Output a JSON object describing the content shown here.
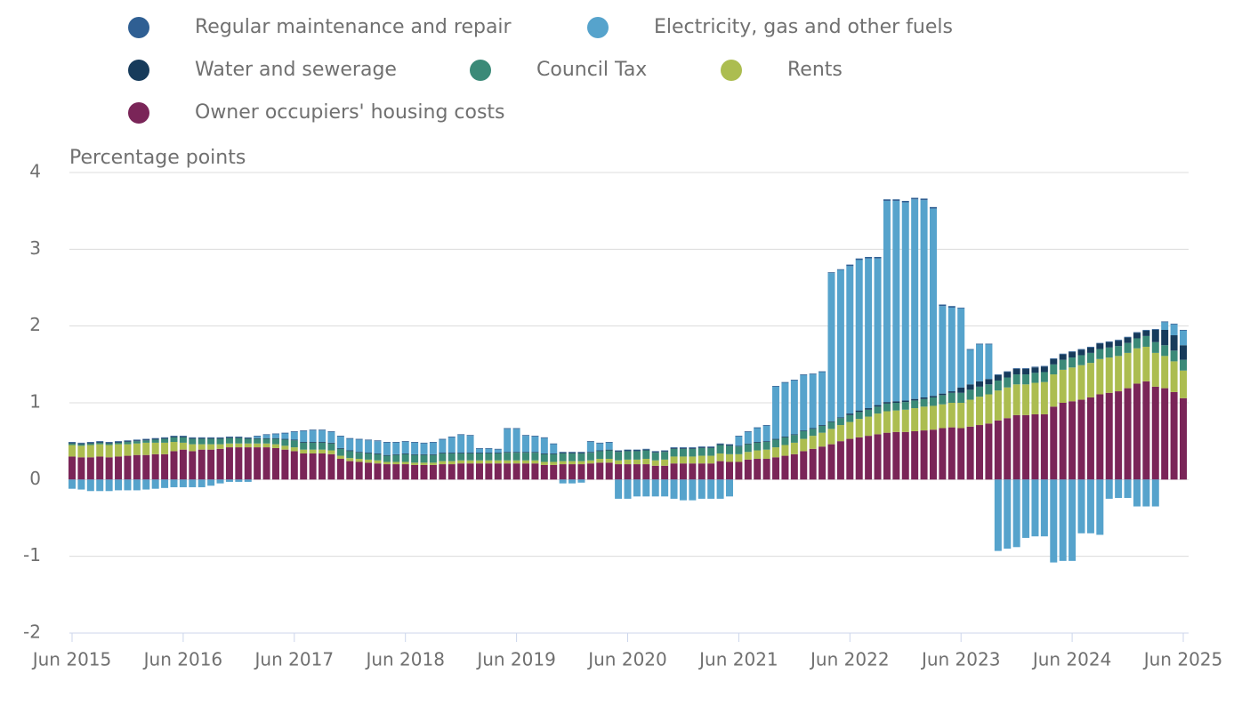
{
  "chart_data": {
    "type": "stacked_bar",
    "y_label": "Percentage points",
    "categories": [
      "Jun 2015",
      null,
      null,
      null,
      null,
      null,
      null,
      null,
      null,
      null,
      null,
      null,
      "Jun 2016",
      null,
      null,
      null,
      null,
      null,
      null,
      null,
      null,
      null,
      null,
      null,
      "Jun 2017",
      null,
      null,
      null,
      null,
      null,
      null,
      null,
      null,
      null,
      null,
      null,
      "Jun 2018",
      null,
      null,
      null,
      null,
      null,
      null,
      null,
      null,
      null,
      null,
      null,
      "Jun 2019",
      null,
      null,
      null,
      null,
      null,
      null,
      null,
      null,
      null,
      null,
      null,
      "Jun 2020",
      null,
      null,
      null,
      null,
      null,
      null,
      null,
      null,
      null,
      null,
      null,
      "Jun 2021",
      null,
      null,
      null,
      null,
      null,
      null,
      null,
      null,
      null,
      null,
      null,
      "Jun 2022",
      null,
      null,
      null,
      null,
      null,
      null,
      null,
      null,
      null,
      null,
      null,
      "Jun 2023",
      null,
      null,
      null,
      null,
      null,
      null,
      null,
      null,
      null,
      null,
      null,
      "Jun 2024",
      null,
      null,
      null,
      null,
      null,
      null,
      null,
      null,
      null,
      null,
      null,
      "Jun 2025"
    ],
    "series": [
      {
        "name": "Regular maintenance and repair",
        "color": "#2f5f93",
        "values": [
          0.01,
          0.01,
          0.01,
          0.01,
          0.01,
          0.01,
          0.01,
          0.01,
          0.01,
          0.01,
          0.01,
          0.01,
          0.01,
          0.01,
          0.01,
          0.01,
          0.01,
          0.01,
          0.01,
          0.01,
          0.01,
          0.01,
          0.01,
          0.01,
          0.01,
          0.01,
          0.01,
          0.01,
          0.01,
          0.01,
          0.01,
          0.01,
          0.01,
          0.01,
          0.01,
          0.01,
          0.01,
          0.01,
          0.01,
          0.01,
          0.01,
          0.01,
          0.01,
          0.01,
          0.01,
          0.01,
          0.01,
          0.01,
          0.01,
          0.01,
          0.01,
          0.01,
          0.01,
          0.01,
          0.01,
          0.01,
          0.01,
          0.01,
          0.01,
          0.01,
          0.01,
          0.01,
          0.01,
          0.01,
          0.01,
          0.01,
          0.01,
          0.01,
          0.01,
          0.01,
          0.01,
          0.01,
          0.01,
          0.01,
          0.01,
          0.01,
          0.01,
          0.01,
          0.01,
          0.01,
          0.01,
          0.01,
          0.01,
          0.01,
          0.02,
          0.02,
          0.02,
          0.02,
          0.02,
          0.02,
          0.02,
          0.02,
          0.02,
          0.02,
          0.02,
          0.02,
          0.01,
          0.01,
          0.01,
          0.01,
          0.01,
          0.01,
          0.01,
          0.01,
          0.01,
          0.01,
          0.01,
          0.01,
          0.01,
          0.01,
          0.01,
          0.01,
          0.01,
          0.01,
          0.01,
          0.01,
          0.01,
          0.01,
          0.01,
          0.01,
          0.01
        ]
      },
      {
        "name": "Electricity, gas and other fuels",
        "color": "#56a3cc",
        "values": [
          -0.12,
          -0.13,
          -0.15,
          -0.15,
          -0.15,
          -0.14,
          -0.14,
          -0.14,
          -0.13,
          -0.12,
          -0.11,
          -0.1,
          -0.1,
          -0.1,
          -0.1,
          -0.08,
          -0.05,
          -0.03,
          -0.03,
          -0.03,
          0.02,
          0.04,
          0.05,
          0.07,
          0.1,
          0.14,
          0.15,
          0.15,
          0.14,
          0.15,
          0.15,
          0.16,
          0.16,
          0.16,
          0.16,
          0.15,
          0.15,
          0.15,
          0.14,
          0.15,
          0.17,
          0.2,
          0.23,
          0.22,
          0.05,
          0.05,
          0.04,
          0.3,
          0.3,
          0.21,
          0.2,
          0.2,
          0.12,
          -0.05,
          -0.05,
          -0.04,
          0.13,
          0.09,
          0.09,
          -0.25,
          -0.25,
          -0.22,
          -0.22,
          -0.22,
          -0.22,
          -0.25,
          -0.27,
          -0.27,
          -0.25,
          -0.25,
          -0.25,
          -0.22,
          0.12,
          0.15,
          0.18,
          0.2,
          0.68,
          0.7,
          0.7,
          0.72,
          0.7,
          0.69,
          1.93,
          1.92,
          1.92,
          1.96,
          1.95,
          1.91,
          2.62,
          2.61,
          2.58,
          2.6,
          2.57,
          2.44,
          1.14,
          1.09,
          1.03,
          0.45,
          0.48,
          0.45,
          -0.93,
          -0.9,
          -0.88,
          -0.76,
          -0.74,
          -0.74,
          -1.08,
          -1.06,
          -1.06,
          -0.7,
          -0.7,
          -0.72,
          -0.25,
          -0.24,
          -0.24,
          -0.35,
          -0.35,
          -0.35,
          0.1,
          0.14,
          0.19
        ]
      },
      {
        "name": "Water and sewerage",
        "color": "#173b5b",
        "values": [
          0.01,
          0.01,
          0.01,
          0.01,
          0.01,
          0.01,
          0.01,
          0.01,
          0.01,
          0.01,
          0.01,
          0.01,
          0.01,
          0.01,
          0.01,
          0.01,
          0.01,
          0.01,
          0.01,
          0.01,
          0.01,
          0.01,
          0.01,
          0.01,
          0.01,
          0.01,
          0.01,
          0.01,
          0.01,
          0.01,
          0.01,
          0.01,
          0.01,
          0.01,
          0.01,
          0.01,
          0.01,
          0.01,
          0.01,
          0.01,
          0.01,
          0.01,
          0.01,
          0.01,
          0.01,
          0.01,
          0.01,
          0.01,
          0.01,
          0.01,
          0.01,
          0.01,
          0.01,
          0.01,
          0.01,
          0.01,
          0.01,
          0.01,
          0.01,
          0.01,
          0.01,
          0.01,
          0.01,
          0.01,
          0.01,
          0.01,
          0.01,
          0.01,
          0.01,
          0.01,
          0.01,
          0.01,
          0.01,
          0.01,
          0.01,
          0.01,
          0.01,
          0.01,
          0.01,
          0.01,
          0.01,
          0.01,
          0.01,
          0.01,
          0.02,
          0.02,
          0.02,
          0.02,
          0.02,
          0.02,
          0.02,
          0.02,
          0.02,
          0.02,
          0.02,
          0.02,
          0.07,
          0.07,
          0.07,
          0.07,
          0.07,
          0.07,
          0.07,
          0.07,
          0.07,
          0.07,
          0.07,
          0.07,
          0.07,
          0.07,
          0.07,
          0.07,
          0.07,
          0.07,
          0.07,
          0.07,
          0.07,
          0.16,
          0.2,
          0.2,
          0.19
        ]
      },
      {
        "name": "Council Tax",
        "color": "#3b8a78",
        "values": [
          0.02,
          0.02,
          0.02,
          0.02,
          0.02,
          0.02,
          0.03,
          0.03,
          0.03,
          0.04,
          0.05,
          0.06,
          0.07,
          0.07,
          0.07,
          0.07,
          0.07,
          0.07,
          0.07,
          0.06,
          0.06,
          0.06,
          0.07,
          0.08,
          0.09,
          0.09,
          0.09,
          0.09,
          0.09,
          0.09,
          0.09,
          0.08,
          0.08,
          0.08,
          0.08,
          0.09,
          0.1,
          0.1,
          0.1,
          0.1,
          0.1,
          0.1,
          0.09,
          0.09,
          0.09,
          0.09,
          0.09,
          0.1,
          0.1,
          0.1,
          0.1,
          0.1,
          0.1,
          0.1,
          0.1,
          0.1,
          0.1,
          0.1,
          0.11,
          0.11,
          0.11,
          0.11,
          0.11,
          0.1,
          0.1,
          0.1,
          0.1,
          0.1,
          0.1,
          0.1,
          0.11,
          0.11,
          0.1,
          0.1,
          0.1,
          0.1,
          0.1,
          0.1,
          0.1,
          0.1,
          0.09,
          0.09,
          0.09,
          0.09,
          0.09,
          0.09,
          0.09,
          0.09,
          0.1,
          0.1,
          0.1,
          0.1,
          0.1,
          0.11,
          0.12,
          0.13,
          0.13,
          0.13,
          0.13,
          0.13,
          0.13,
          0.13,
          0.13,
          0.13,
          0.13,
          0.13,
          0.13,
          0.13,
          0.13,
          0.13,
          0.13,
          0.13,
          0.13,
          0.13,
          0.13,
          0.13,
          0.14,
          0.14,
          0.14,
          0.14,
          0.14
        ]
      },
      {
        "name": "Rents",
        "color": "#acbd50",
        "values": [
          0.15,
          0.15,
          0.16,
          0.16,
          0.16,
          0.16,
          0.15,
          0.15,
          0.16,
          0.15,
          0.15,
          0.12,
          0.09,
          0.09,
          0.07,
          0.07,
          0.06,
          0.05,
          0.05,
          0.05,
          0.05,
          0.05,
          0.05,
          0.05,
          0.05,
          0.05,
          0.05,
          0.05,
          0.05,
          0.04,
          0.04,
          0.04,
          0.04,
          0.04,
          0.03,
          0.03,
          0.03,
          0.03,
          0.03,
          0.03,
          0.04,
          0.04,
          0.04,
          0.04,
          0.04,
          0.04,
          0.04,
          0.04,
          0.04,
          0.04,
          0.04,
          0.04,
          0.04,
          0.04,
          0.04,
          0.04,
          0.04,
          0.05,
          0.05,
          0.05,
          0.06,
          0.06,
          0.07,
          0.07,
          0.08,
          0.09,
          0.09,
          0.09,
          0.1,
          0.1,
          0.1,
          0.1,
          0.1,
          0.1,
          0.11,
          0.12,
          0.13,
          0.14,
          0.15,
          0.16,
          0.17,
          0.18,
          0.2,
          0.21,
          0.22,
          0.24,
          0.25,
          0.27,
          0.28,
          0.28,
          0.29,
          0.3,
          0.31,
          0.31,
          0.31,
          0.32,
          0.33,
          0.35,
          0.37,
          0.38,
          0.39,
          0.4,
          0.4,
          0.4,
          0.41,
          0.42,
          0.42,
          0.43,
          0.44,
          0.45,
          0.45,
          0.46,
          0.46,
          0.46,
          0.46,
          0.46,
          0.45,
          0.44,
          0.42,
          0.4,
          0.36
        ]
      },
      {
        "name": "Owner occupiers' housing costs",
        "color": "#7a2558",
        "values": [
          0.3,
          0.29,
          0.29,
          0.3,
          0.29,
          0.3,
          0.31,
          0.32,
          0.32,
          0.33,
          0.33,
          0.37,
          0.39,
          0.37,
          0.39,
          0.39,
          0.4,
          0.42,
          0.42,
          0.42,
          0.42,
          0.42,
          0.41,
          0.39,
          0.37,
          0.34,
          0.34,
          0.34,
          0.33,
          0.27,
          0.24,
          0.23,
          0.22,
          0.21,
          0.2,
          0.2,
          0.2,
          0.19,
          0.19,
          0.19,
          0.2,
          0.2,
          0.21,
          0.21,
          0.21,
          0.21,
          0.21,
          0.21,
          0.21,
          0.21,
          0.21,
          0.19,
          0.19,
          0.2,
          0.2,
          0.2,
          0.21,
          0.22,
          0.22,
          0.2,
          0.2,
          0.2,
          0.2,
          0.18,
          0.18,
          0.21,
          0.21,
          0.21,
          0.21,
          0.21,
          0.24,
          0.23,
          0.23,
          0.26,
          0.27,
          0.27,
          0.29,
          0.31,
          0.33,
          0.37,
          0.4,
          0.43,
          0.46,
          0.5,
          0.53,
          0.55,
          0.57,
          0.59,
          0.61,
          0.62,
          0.62,
          0.63,
          0.64,
          0.65,
          0.67,
          0.68,
          0.67,
          0.69,
          0.71,
          0.73,
          0.77,
          0.8,
          0.84,
          0.84,
          0.85,
          0.85,
          0.95,
          1.0,
          1.02,
          1.04,
          1.07,
          1.11,
          1.13,
          1.15,
          1.19,
          1.25,
          1.28,
          1.21,
          1.19,
          1.14,
          1.06
        ]
      }
    ],
    "ylim": [
      -2,
      4
    ],
    "yticks": [
      -2,
      -1,
      0,
      1,
      2,
      3,
      4
    ],
    "grid": true
  }
}
